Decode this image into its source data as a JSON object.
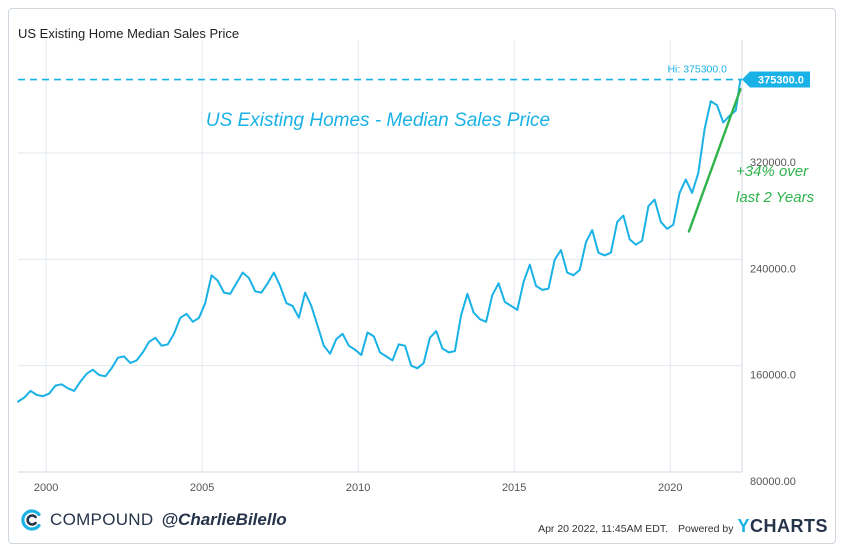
{
  "header": {
    "title": "US Existing Home Median Sales Price"
  },
  "footer": {
    "brand": "COMPOUND",
    "handle": "@CharlieBilello",
    "timestamp": "Apr 20 2022, 11:45AM EDT.",
    "powered_by": "Powered by",
    "ycharts_y": "Y",
    "ycharts_rest": "CHARTS"
  },
  "colors": {
    "series": "#1ab2e6",
    "trend": "#2fb34a",
    "grid": "#e3e8ee",
    "axis_text": "#555555"
  },
  "chart_data": {
    "type": "line",
    "title": "US Existing Home Median Sales Price",
    "xlabel": "",
    "ylabel": "",
    "xlim": [
      1999.1,
      2022.3
    ],
    "ylim": [
      80000,
      390000
    ],
    "x_ticks": [
      {
        "value": 2000,
        "label": "2000"
      },
      {
        "value": 2005,
        "label": "2005"
      },
      {
        "value": 2010,
        "label": "2010"
      },
      {
        "value": 2015,
        "label": "2015"
      },
      {
        "value": 2020,
        "label": "2020"
      }
    ],
    "y_ticks": [
      {
        "value": 80000,
        "label": "80000.00"
      },
      {
        "value": 160000,
        "label": "160000.0"
      },
      {
        "value": 240000,
        "label": "240000.0"
      },
      {
        "value": 320000,
        "label": "320000.0"
      }
    ],
    "grid": true,
    "annotation_title": "US Existing Homes - Median Sales Price",
    "hi": {
      "value": 375300,
      "label": "Hi: 375300.0",
      "badge": "375300.0"
    },
    "trend_annotation": {
      "line1": "+34% over",
      "line2": "last 2 Years",
      "from": [
        2020.6,
        261000
      ],
      "to": [
        2022.25,
        368000
      ]
    },
    "series": [
      {
        "name": "US Existing Home Median Sales Price",
        "x": [
          1999.1,
          1999.3,
          1999.5,
          1999.7,
          1999.9,
          2000.1,
          2000.3,
          2000.5,
          2000.7,
          2000.9,
          2001.1,
          2001.3,
          2001.5,
          2001.7,
          2001.9,
          2002.1,
          2002.3,
          2002.5,
          2002.7,
          2002.9,
          2003.1,
          2003.3,
          2003.5,
          2003.7,
          2003.9,
          2004.1,
          2004.3,
          2004.5,
          2004.7,
          2004.9,
          2005.1,
          2005.3,
          2005.5,
          2005.7,
          2005.9,
          2006.1,
          2006.3,
          2006.5,
          2006.7,
          2006.9,
          2007.1,
          2007.3,
          2007.5,
          2007.7,
          2007.9,
          2008.1,
          2008.3,
          2008.5,
          2008.7,
          2008.9,
          2009.1,
          2009.3,
          2009.5,
          2009.7,
          2009.9,
          2010.1,
          2010.3,
          2010.5,
          2010.7,
          2010.9,
          2011.1,
          2011.3,
          2011.5,
          2011.7,
          2011.9,
          2012.1,
          2012.3,
          2012.5,
          2012.7,
          2012.9,
          2013.1,
          2013.3,
          2013.5,
          2013.7,
          2013.9,
          2014.1,
          2014.3,
          2014.5,
          2014.7,
          2014.9,
          2015.1,
          2015.3,
          2015.5,
          2015.7,
          2015.9,
          2016.1,
          2016.3,
          2016.5,
          2016.7,
          2016.9,
          2017.1,
          2017.3,
          2017.5,
          2017.7,
          2017.9,
          2018.1,
          2018.3,
          2018.5,
          2018.7,
          2018.9,
          2019.1,
          2019.3,
          2019.5,
          2019.7,
          2019.9,
          2020.1,
          2020.3,
          2020.5,
          2020.7,
          2020.9,
          2021.1,
          2021.3,
          2021.5,
          2021.7,
          2021.9,
          2022.1,
          2022.25
        ],
        "values": [
          133000,
          136000,
          141000,
          138000,
          137000,
          139000,
          145000,
          146000,
          143000,
          141000,
          148000,
          154000,
          157000,
          153000,
          152000,
          158000,
          166000,
          167000,
          162000,
          164000,
          170000,
          178000,
          181000,
          175000,
          176000,
          184000,
          196000,
          199000,
          193000,
          196000,
          207000,
          228000,
          224000,
          215000,
          214000,
          222000,
          230000,
          226000,
          216000,
          215000,
          222000,
          230000,
          220000,
          207000,
          205000,
          196000,
          215000,
          205000,
          190000,
          175000,
          169000,
          180000,
          184000,
          175000,
          172000,
          168000,
          185000,
          182000,
          170000,
          167000,
          164000,
          176000,
          175000,
          160000,
          158000,
          162000,
          181000,
          186000,
          173000,
          170000,
          171000,
          198000,
          214000,
          200000,
          195000,
          193000,
          213000,
          222000,
          208000,
          205000,
          202000,
          223000,
          236000,
          220000,
          217000,
          218000,
          240000,
          247000,
          230000,
          228000,
          232000,
          253000,
          262000,
          245000,
          243000,
          245000,
          268000,
          273000,
          255000,
          251000,
          254000,
          280000,
          285000,
          268000,
          263000,
          266000,
          290000,
          300000,
          290000,
          305000,
          338000,
          359000,
          356000,
          343000,
          348000,
          352000,
          375300
        ]
      }
    ]
  }
}
